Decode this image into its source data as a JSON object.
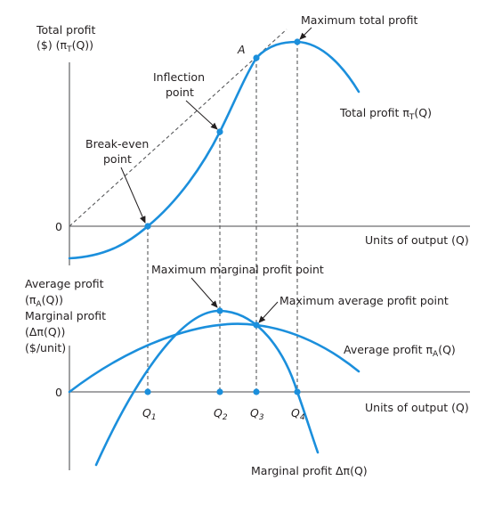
{
  "colors": {
    "curve": "#1b8fdc",
    "axis": "#6d6e71",
    "text": "#231f20"
  },
  "top_panel": {
    "y_label": {
      "line1": "Total profit",
      "line2_pre": "($) (π",
      "line2_sub": "T",
      "line2_post": "(Q))"
    },
    "origin": "0",
    "x_label": "Units of output (Q)",
    "max_label": "Maximum total profit",
    "point_a": "A",
    "inflection": {
      "line1": "Inflection",
      "line2": "point"
    },
    "breakeven": {
      "line1": "Break-even",
      "line2": "point"
    },
    "curve_label": {
      "pre": "Total profit π",
      "sub": "T",
      "post": "(Q)"
    }
  },
  "bottom_panel": {
    "y_label": {
      "line1": "Average profit",
      "line2_pre": "(π",
      "line2_sub": "A",
      "line2_post": "(Q))",
      "line3": "Marginal profit",
      "line4": "(Δπ(Q))",
      "line5": "($/unit)"
    },
    "origin": "0",
    "x_label": "Units of output (Q)",
    "max_marginal": "Maximum marginal profit point",
    "max_average": "Maximum average profit point",
    "avg_label": {
      "pre": "Average profit π",
      "sub": "A",
      "post": "(Q)"
    },
    "marg_label": "Marginal profit Δπ(Q)",
    "q_ticks": [
      {
        "main": "Q",
        "sub": "1"
      },
      {
        "main": "Q",
        "sub": "2"
      },
      {
        "main": "Q",
        "sub": "3"
      },
      {
        "main": "Q",
        "sub": "4"
      }
    ]
  }
}
